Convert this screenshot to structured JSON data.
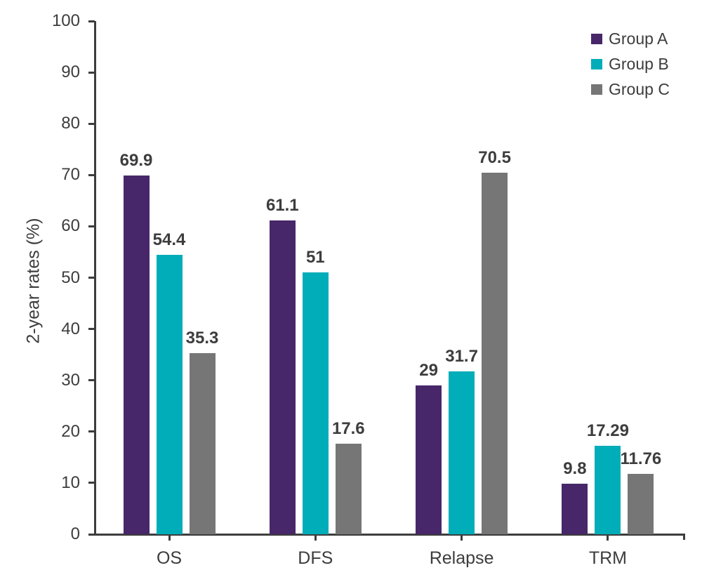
{
  "chart_data": {
    "type": "bar",
    "title": "",
    "xlabel": "",
    "ylabel": "2-year rates (%)",
    "categories": [
      "OS",
      "DFS",
      "Relapse",
      "TRM"
    ],
    "series": [
      {
        "name": "Group A",
        "color": "#472769",
        "values": [
          69.9,
          61.1,
          29,
          9.8
        ]
      },
      {
        "name": "Group B",
        "color": "#00adb8",
        "values": [
          54.4,
          51,
          31.7,
          17.29
        ]
      },
      {
        "name": "Group C",
        "color": "#767676",
        "values": [
          35.3,
          17.6,
          70.5,
          11.76
        ]
      }
    ],
    "value_labels": [
      [
        "69.9",
        "61.1",
        "29",
        "9.8"
      ],
      [
        "54.4",
        "51",
        "31.7",
        "17.29"
      ],
      [
        "35.3",
        "17.6",
        "70.5",
        "11.76"
      ]
    ],
    "ylim": [
      0,
      100
    ],
    "ytick_step": 10,
    "yticks": [
      "0",
      "10",
      "20",
      "30",
      "40",
      "50",
      "60",
      "70",
      "80",
      "90",
      "100"
    ],
    "grid": false,
    "legend_position": "top-right",
    "axis_color": "#3d3d3d",
    "text_color": "#3d3d3d",
    "background_color": "#ffffff"
  }
}
